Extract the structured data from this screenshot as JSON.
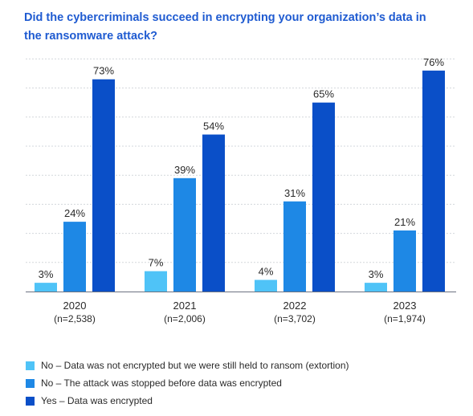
{
  "chart_data": {
    "type": "bar",
    "title": "Did the cybercriminals succeed in encrypting your organization’s data in the ransomware attack?",
    "categories": [
      "2020",
      "2021",
      "2022",
      "2023"
    ],
    "category_sublabels": [
      "(n=2,538)",
      "(n=2,006)",
      "(n=3,702)",
      "(n=1,974)"
    ],
    "series": [
      {
        "name": "No – Data was not encrypted but we were still held to ransom (extortion)",
        "color": "#4fc3f7",
        "values": [
          3,
          7,
          4,
          3
        ],
        "labels": [
          "3%",
          "7%",
          "4%",
          "3%"
        ]
      },
      {
        "name": "No – The attack was stopped before data was encrypted",
        "color": "#1e88e5",
        "values": [
          24,
          39,
          31,
          21
        ],
        "labels": [
          "24%",
          "39%",
          "31%",
          "21%"
        ]
      },
      {
        "name": "Yes – Data was encrypted",
        "color": "#0a4fc8",
        "values": [
          73,
          54,
          65,
          76
        ],
        "labels": [
          "73%",
          "54%",
          "65%",
          "76%"
        ]
      }
    ],
    "ylim": [
      0,
      80
    ],
    "grid": true,
    "legend_position": "bottom"
  }
}
